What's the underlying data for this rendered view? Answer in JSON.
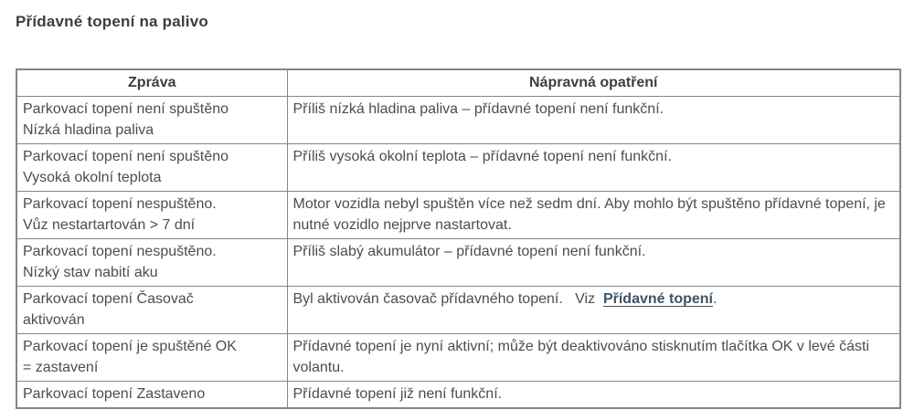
{
  "page": {
    "title": "Přídavné topení na palivo"
  },
  "colors": {
    "body_text": "#4d4d4d",
    "title_text": "#3d3d3d",
    "table_border": "#858585",
    "link": "#3e5468"
  },
  "table": {
    "headers": [
      "Zpráva",
      "Nápravná opatření"
    ],
    "rows": [
      {
        "message": "Parkovací topení není spuštěno\nNízká hladina paliva",
        "remedy": "Příliš nízká hladina paliva – přídavné topení není funkční."
      },
      {
        "message": "Parkovací topení není spuštěno\nVysoká okolní teplota",
        "remedy": "Příliš vysoká okolní teplota – přídavné topení není funkční."
      },
      {
        "message": "Parkovací topení nespuštěno.\nVůz nestartartován > 7 dní",
        "remedy": "Motor vozidla nebyl spuštěn více než sedm dní. Aby mohlo být spuštěno přídavné topení, je nutné vozidlo nejprve nastartovat."
      },
      {
        "message": "Parkovací topení nespuštěno.\nNízký stav nabití aku",
        "remedy": "Příliš slabý akumulátor – přídavné topení není funkční."
      },
      {
        "message": "Parkovací topení Časovač\naktivován",
        "remedy_prefix": "Byl aktivován časovač přídavného topení.   Viz  ",
        "remedy_link": "Přídavné topení",
        "remedy_suffix": "."
      },
      {
        "message": "Parkovací topení je spuštěné OK\n= zastavení",
        "remedy": "Přídavné topení je nyní aktivní; může být deaktivováno stisknutím tlačítka OK v levé části volantu."
      },
      {
        "message": "Parkovací topení Zastaveno",
        "remedy": "Přídavné topení již není funkční."
      }
    ]
  }
}
